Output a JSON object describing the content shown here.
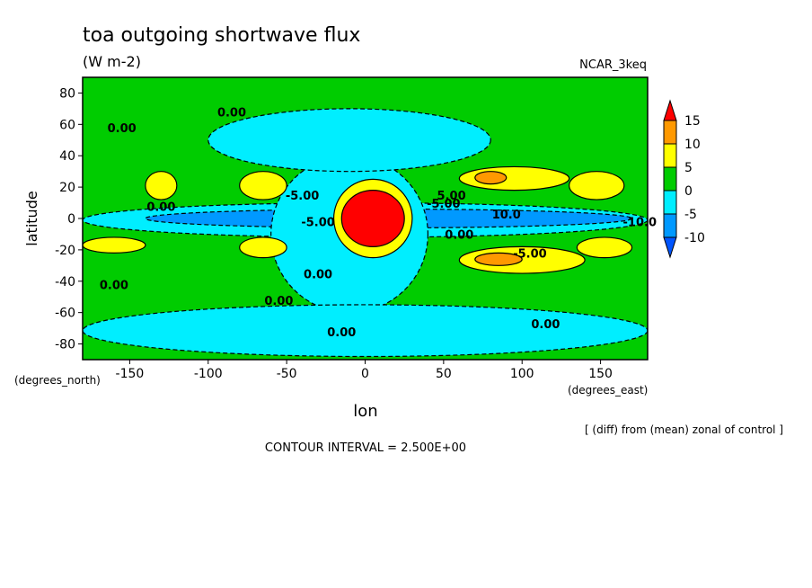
{
  "chart_data": {
    "type": "heatmap",
    "title": "toa outgoing shortwave flux",
    "units": "(W m-2)",
    "dataset": "NCAR_3keq",
    "xlabel": "lon",
    "ylabel": "latitude",
    "x_units": "(degrees_east)",
    "y_units": "(degrees_north)",
    "xlim": [
      -180,
      180
    ],
    "ylim": [
      -90,
      90
    ],
    "x_ticks": [
      -150,
      -100,
      -50,
      0,
      50,
      100,
      150
    ],
    "y_ticks": [
      80,
      60,
      40,
      20,
      0,
      -20,
      -40,
      -60,
      -80
    ],
    "subtitle_note": "[ (diff) from (mean) zonal of control ]",
    "contour_interval": "CONTOUR INTERVAL = 2.500E+00",
    "colorbar": {
      "labels": [
        "15",
        "10",
        "5",
        "0",
        "-5",
        "-10"
      ],
      "bands": [
        {
          "lo": 15,
          "hi": null,
          "color": "#ff0000"
        },
        {
          "lo": 10,
          "hi": 15,
          "color": "#ff9900"
        },
        {
          "lo": 5,
          "hi": 10,
          "color": "#ffff00"
        },
        {
          "lo": 0,
          "hi": 5,
          "color": "#00cc00"
        },
        {
          "lo": -5,
          "hi": 0,
          "color": "#00eeff"
        },
        {
          "lo": -10,
          "hi": -5,
          "color": "#0099ff"
        },
        {
          "lo": null,
          "hi": -10,
          "color": "#0055ff"
        }
      ]
    },
    "background_color": "#00cc00",
    "regions": [
      {
        "lon": [
          -180,
          180
        ],
        "lat": [
          -12,
          10
        ],
        "level": -5
      },
      {
        "lon": [
          -140,
          170
        ],
        "lat": [
          -6,
          6
        ],
        "level": -10
      },
      {
        "lon": [
          -60,
          40
        ],
        "lat": [
          -60,
          40
        ],
        "level": -5
      },
      {
        "lon": [
          -180,
          180
        ],
        "lat": [
          -88,
          -55
        ],
        "level": -5
      },
      {
        "lon": [
          -100,
          80
        ],
        "lat": [
          30,
          70
        ],
        "level": -5
      },
      {
        "lon": [
          -20,
          30
        ],
        "lat": [
          -25,
          25
        ],
        "level": 5
      },
      {
        "lon": [
          -15,
          25
        ],
        "lat": [
          -18,
          18
        ],
        "level": 15
      },
      {
        "lon": [
          -140,
          -120
        ],
        "lat": [
          12,
          30
        ],
        "level": 5
      },
      {
        "lon": [
          -80,
          -50
        ],
        "lat": [
          12,
          30
        ],
        "level": 5
      },
      {
        "lon": [
          -80,
          -50
        ],
        "lat": [
          -25,
          -12
        ],
        "level": 5
      },
      {
        "lon": [
          -180,
          -140
        ],
        "lat": [
          -22,
          -12
        ],
        "level": 5
      },
      {
        "lon": [
          60,
          130
        ],
        "lat": [
          18,
          33
        ],
        "level": 5
      },
      {
        "lon": [
          70,
          90
        ],
        "lat": [
          22,
          30
        ],
        "level": 10
      },
      {
        "lon": [
          60,
          140
        ],
        "lat": [
          -35,
          -18
        ],
        "level": 5
      },
      {
        "lon": [
          70,
          100
        ],
        "lat": [
          -30,
          -22
        ],
        "level": 10
      },
      {
        "lon": [
          130,
          165
        ],
        "lat": [
          12,
          30
        ],
        "level": 5
      },
      {
        "lon": [
          135,
          170
        ],
        "lat": [
          -25,
          -12
        ],
        "level": 5
      }
    ],
    "contour_labels": [
      {
        "text": "0.00",
        "lon": -85,
        "lat": 65
      },
      {
        "text": "0.00",
        "lon": -155,
        "lat": 55
      },
      {
        "text": "-5.00",
        "lon": -40,
        "lat": 12
      },
      {
        "text": "5.00",
        "lon": 55,
        "lat": 12
      },
      {
        "text": "-5.00",
        "lon": 50,
        "lat": 7
      },
      {
        "text": "10.0",
        "lon": 90,
        "lat": 0
      },
      {
        "text": "0.00",
        "lon": -130,
        "lat": 5
      },
      {
        "text": "-5.00",
        "lon": -30,
        "lat": -5
      },
      {
        "text": "-10.0",
        "lon": 175,
        "lat": -5
      },
      {
        "text": "0.00",
        "lon": 60,
        "lat": -13
      },
      {
        "text": "-5.00",
        "lon": 105,
        "lat": -25
      },
      {
        "text": "0.00",
        "lon": -30,
        "lat": -38
      },
      {
        "text": "0.00",
        "lon": -160,
        "lat": -45
      },
      {
        "text": "0.00",
        "lon": -55,
        "lat": -55
      },
      {
        "text": "0.00",
        "lon": -15,
        "lat": -75
      },
      {
        "text": "0.00",
        "lon": 115,
        "lat": -70
      }
    ]
  }
}
